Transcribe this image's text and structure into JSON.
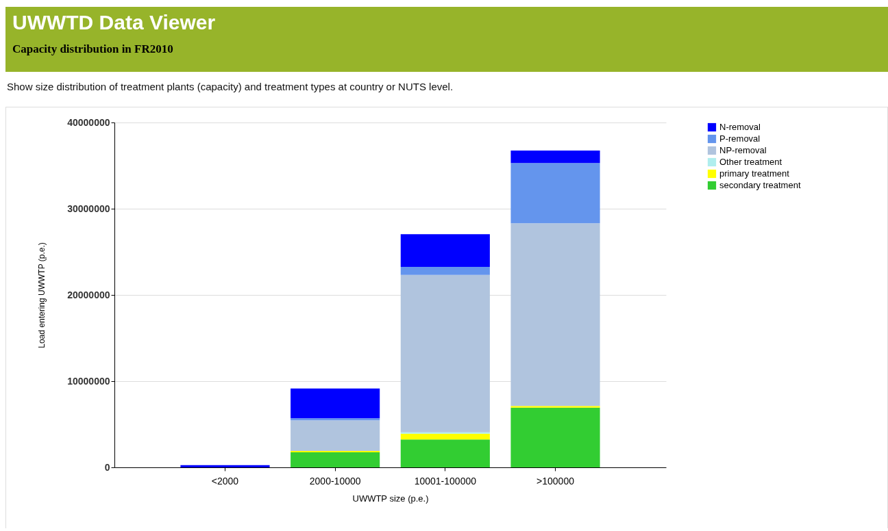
{
  "chart_data": {
    "type": "bar",
    "title": "UWWTD Data Viewer",
    "subtitle": "Capacity distribution in FR2010",
    "annotations": [
      "Show size distribution of treatment plants (capacity) and treatment types at country or NUTS level."
    ],
    "xlabel": "UWWTP size (p.e.)",
    "ylabel": "Load entering UWWTP (p.e.)",
    "categories": [
      "<2000",
      "2000-10000",
      "10001-100000",
      ">100000"
    ],
    "stacked": true,
    "series": [
      {
        "name": "secondary treatment",
        "color": "#32cd32",
        "values": [
          null,
          1750000,
          3230000,
          6930000
        ]
      },
      {
        "name": "primary treatment",
        "color": "#ffff00",
        "values": [
          null,
          150000,
          670000,
          190000
        ]
      },
      {
        "name": "Other treatment",
        "color": "#afeeee",
        "values": [
          null,
          null,
          170000,
          null
        ]
      },
      {
        "name": "NP-removal",
        "color": "#b0c4de",
        "values": [
          null,
          3550000,
          18260000,
          21190000
        ]
      },
      {
        "name": "P-removal",
        "color": "#6495ed",
        "values": [
          null,
          250000,
          920000,
          6980000
        ]
      },
      {
        "name": "N-removal",
        "color": "#0000ff",
        "values": [
          250000,
          3450000,
          3790000,
          1460000
        ]
      }
    ],
    "ylim": [
      0,
      40000000
    ],
    "yticks": [
      0,
      10000000,
      20000000,
      30000000,
      40000000
    ],
    "grid": "y",
    "legend": "top right"
  }
}
